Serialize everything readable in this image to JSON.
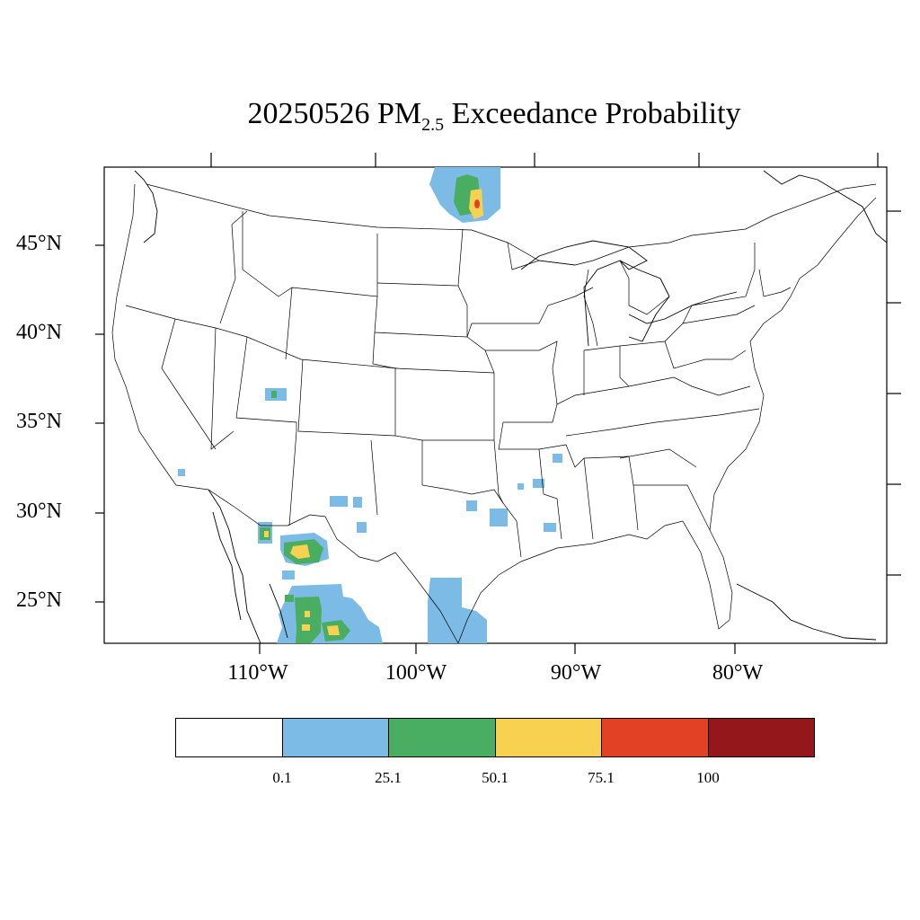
{
  "title": {
    "prefix": "20250526 PM",
    "subscript": "2.5",
    "suffix": " Exceedance Probability"
  },
  "axes": {
    "latitude_labels": [
      "45°N",
      "40°N",
      "35°N",
      "30°N",
      "25°N"
    ],
    "longitude_labels": [
      "110°W",
      "100°W",
      "90°W",
      "80°W"
    ]
  },
  "legend": {
    "colors": [
      "#ffffff",
      "#7dbbe7",
      "#4aae62",
      "#f9d150",
      "#e34126",
      "#94171c"
    ],
    "labels": [
      "0.1",
      "25.1",
      "50.1",
      "75.1",
      "100"
    ]
  },
  "map": {
    "projection": "lambert-conformal",
    "extent": "contiguous-us",
    "boundaries": "states-and-countries"
  }
}
